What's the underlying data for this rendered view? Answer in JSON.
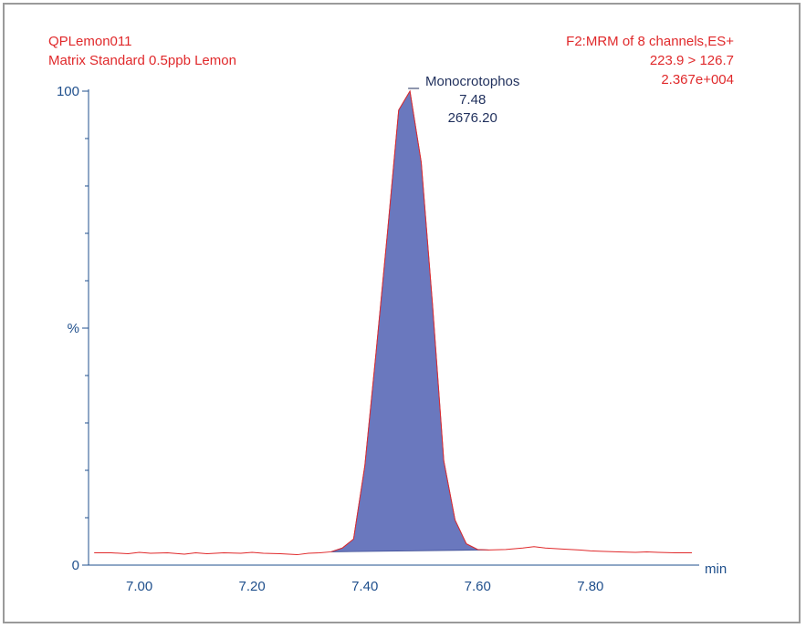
{
  "header": {
    "sample_name": "QPLemon011",
    "sample_desc": "Matrix Standard 0.5ppb Lemon",
    "function": "F2:MRM of 8 channels,ES+",
    "transition": "223.9 > 126.7",
    "intensity": "2.367e+004"
  },
  "colors": {
    "header_text": "#e0292b",
    "axis_text": "#1f4f8c",
    "peak_fill": "#6a78be",
    "baseline": "#e0292b"
  },
  "chart_data": {
    "type": "area",
    "xlabel": "min",
    "ylabel": "%",
    "xlim": [
      6.91,
      7.98
    ],
    "ylim": [
      0,
      100
    ],
    "x_ticks": [
      7.0,
      7.2,
      7.4,
      7.6,
      7.8
    ],
    "x_tick_labels": [
      "7.00",
      "7.20",
      "7.40",
      "7.60",
      "7.80"
    ],
    "y_tick_labels": [
      "0",
      "%",
      "100"
    ],
    "grid": false,
    "series": [
      {
        "x": [
          6.92,
          6.95,
          6.98,
          7.0,
          7.02,
          7.05,
          7.08,
          7.1,
          7.12,
          7.15,
          7.18,
          7.2,
          7.22,
          7.25,
          7.28,
          7.3,
          7.32,
          7.34,
          7.36,
          7.38,
          7.4,
          7.42,
          7.44,
          7.46,
          7.48,
          7.5,
          7.52,
          7.54,
          7.56,
          7.58,
          7.6,
          7.62,
          7.65,
          7.68,
          7.7,
          7.72,
          7.75,
          7.78,
          7.8,
          7.82,
          7.85,
          7.88,
          7.9,
          7.92,
          7.95,
          7.98
        ],
        "values": [
          2.6,
          2.6,
          2.4,
          2.7,
          2.5,
          2.6,
          2.3,
          2.6,
          2.4,
          2.6,
          2.5,
          2.7,
          2.5,
          2.4,
          2.2,
          2.5,
          2.6,
          2.8,
          3.6,
          5.5,
          21,
          45,
          70,
          96,
          100,
          85,
          55,
          22,
          9.5,
          4.5,
          3.3,
          3.2,
          3.3,
          3.6,
          3.9,
          3.6,
          3.4,
          3.2,
          3.0,
          2.9,
          2.8,
          2.7,
          2.8,
          2.7,
          2.6,
          2.6
        ]
      }
    ],
    "annotations": [
      {
        "x": 7.48,
        "name": "Monocrotophos",
        "rt": "7.48",
        "area": "2676.20"
      }
    ]
  }
}
